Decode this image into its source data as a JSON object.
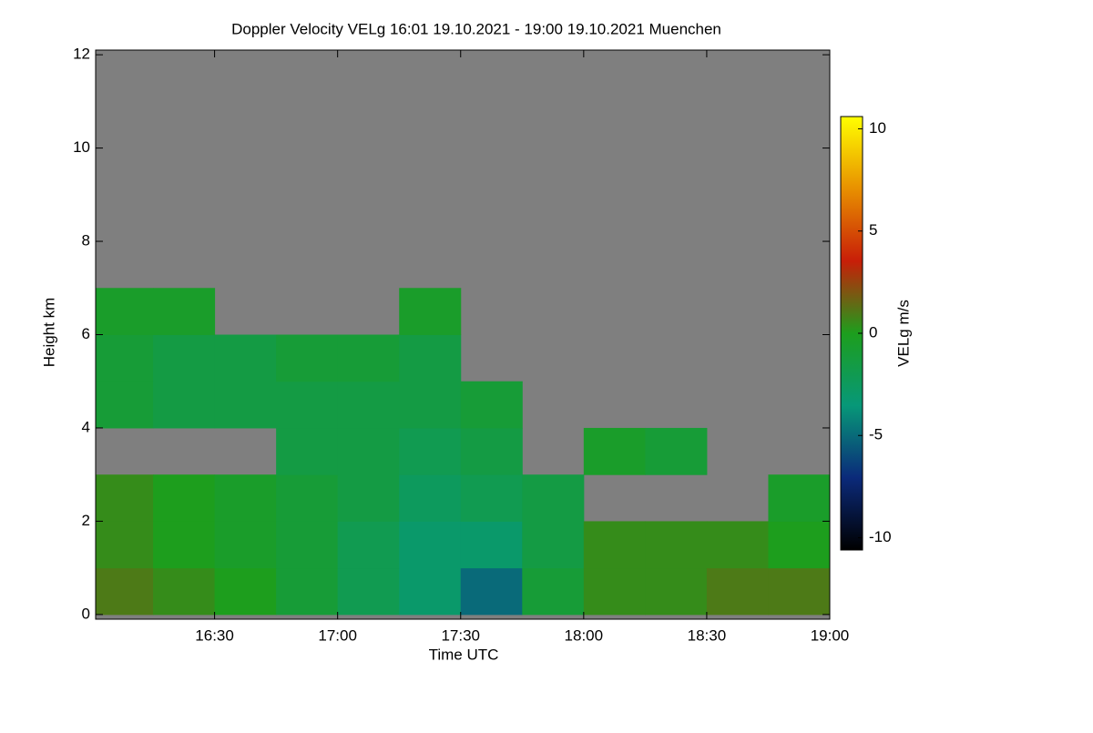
{
  "chart_data": {
    "type": "heatmap",
    "title": "Doppler Velocity VELg   16:01 19.10.2021 - 19:00 19.10.2021 Muenchen",
    "x_label": "Time UTC",
    "y_label": "Height km",
    "xlim": [
      "16:01",
      "19:00"
    ],
    "xticks": [
      "16:30",
      "17:00",
      "17:30",
      "18:00",
      "18:30",
      "19:00"
    ],
    "ylim": [
      -0.1,
      12.1
    ],
    "yticks": [
      0,
      2,
      4,
      6,
      8,
      10,
      12
    ],
    "x_bins": [
      "16:01",
      "16:15",
      "16:30",
      "16:45",
      "17:00",
      "17:15",
      "17:30",
      "17:45",
      "18:00",
      "18:15",
      "18:30",
      "18:45",
      "19:00"
    ],
    "y_bins": [
      0,
      1,
      2,
      3,
      4,
      5,
      6,
      7
    ],
    "z": [
      [
        1,
        0.5,
        0,
        -1,
        -2,
        -3,
        -5,
        -1,
        0.5,
        0.5,
        1,
        1
      ],
      [
        0.5,
        0,
        -0.5,
        -1,
        -2,
        -3,
        -3,
        -1.5,
        0.5,
        0.5,
        0.5,
        0
      ],
      [
        0.5,
        0,
        -0.5,
        -1,
        -1.5,
        -2.5,
        -2,
        -1.5,
        null,
        null,
        null,
        -0.5
      ],
      [
        null,
        null,
        null,
        -1.5,
        -1.5,
        -2,
        -1.5,
        null,
        -0.5,
        -1,
        null,
        null
      ],
      [
        -1,
        -1.5,
        -1.5,
        -1.5,
        -1.5,
        -1.5,
        -1,
        null,
        null,
        null,
        null,
        null
      ],
      [
        -1,
        -1.5,
        -1.5,
        -1,
        -1,
        -1.5,
        null,
        null,
        null,
        null,
        null,
        null
      ],
      [
        -0.5,
        -0.5,
        null,
        null,
        null,
        -0.5,
        null,
        null,
        null,
        null,
        null,
        null
      ]
    ],
    "background": "#7f7f7f",
    "colorbar": {
      "label": "VELg m/s",
      "clim": [
        -10.6,
        10.6
      ],
      "ticks": [
        10,
        5,
        0,
        -5,
        -10
      ],
      "colormap": [
        "#000000",
        "#0b2a7a",
        "#079878",
        "#1d9e1d",
        "#c81e08",
        "#e89000",
        "#ffff00"
      ]
    }
  }
}
